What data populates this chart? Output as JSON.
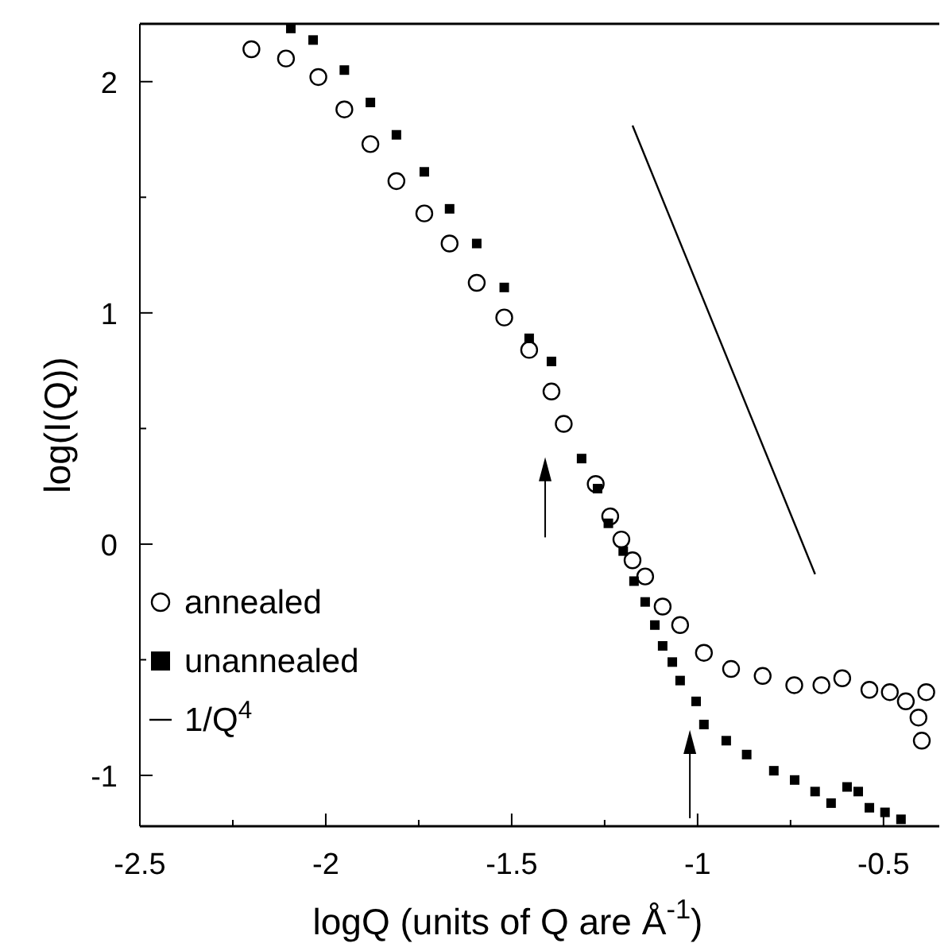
{
  "chart_data": {
    "type": "scatter",
    "xlabel": "logQ (units of Q are Å$^{-1}$)",
    "ylabel": "log(I(Q))",
    "xlim": [
      -2.5,
      -0.35
    ],
    "ylim": [
      -1.22,
      2.25
    ],
    "xticks": [
      -2.5,
      {
        "value": -2.25,
        "label": null
      },
      -2,
      {
        "value": -1.75,
        "label": null
      },
      -1.5,
      {
        "value": -1.25,
        "label": null
      },
      -1,
      {
        "value": -0.75,
        "label": null
      },
      -0.5
    ],
    "yticks": [
      -1,
      {
        "value": -0.5,
        "label": null
      },
      0,
      {
        "value": 0.5,
        "label": null
      },
      1,
      {
        "value": 1.5,
        "label": null
      },
      2
    ],
    "legend": "bottom left",
    "grid": false,
    "series": [
      {
        "name": "annealed",
        "marker": "circle",
        "color": "#000000",
        "x": [
          -2.2,
          -2.107,
          -2.02,
          -1.95,
          -1.88,
          -1.81,
          -1.735,
          -1.667,
          -1.594,
          -1.52,
          -1.453,
          -1.393,
          -1.36,
          -1.274,
          -1.235,
          -1.205,
          -1.175,
          -1.141,
          -1.094,
          -1.047,
          -0.983,
          -0.91,
          -0.825,
          -0.74,
          -0.667,
          -0.611,
          -0.538,
          -0.483,
          -0.44,
          -0.406,
          -0.397,
          -0.385
        ],
        "values": [
          2.14,
          2.1,
          2.02,
          1.88,
          1.73,
          1.57,
          1.43,
          1.3,
          1.13,
          0.98,
          0.84,
          0.66,
          0.52,
          0.26,
          0.12,
          0.02,
          -0.07,
          -0.14,
          -0.27,
          -0.35,
          -0.47,
          -0.54,
          -0.57,
          -0.61,
          -0.61,
          -0.58,
          -0.63,
          -0.64,
          -0.68,
          -0.75,
          -0.85,
          -0.64
        ]
      },
      {
        "name": "unannealed",
        "marker": "square",
        "color": "#000000",
        "x": [
          -2.094,
          -2.034,
          -1.95,
          -1.88,
          -1.81,
          -1.735,
          -1.667,
          -1.594,
          -1.52,
          -1.453,
          -1.393,
          -1.312,
          -1.269,
          -1.24,
          -1.2,
          -1.171,
          -1.141,
          -1.115,
          -1.094,
          -1.068,
          -1.047,
          -1.004,
          -0.983,
          -0.923,
          -0.868,
          -0.795,
          -0.739,
          -0.684,
          -0.641,
          -0.598,
          -0.568,
          -0.538,
          -0.496,
          -0.453
        ],
        "values": [
          2.23,
          2.18,
          2.05,
          1.91,
          1.77,
          1.61,
          1.45,
          1.3,
          1.11,
          0.89,
          0.79,
          0.37,
          0.24,
          0.09,
          -0.03,
          -0.16,
          -0.25,
          -0.35,
          -0.44,
          -0.51,
          -0.59,
          -0.68,
          -0.78,
          -0.85,
          -0.91,
          -0.98,
          -1.02,
          -1.07,
          -1.12,
          -1.05,
          -1.07,
          -1.14,
          -1.16,
          -1.19
        ]
      },
      {
        "name": "1/Q$^{4}$",
        "type": "line",
        "marker": "none",
        "line_style": "solid",
        "color": "#000000",
        "x": [
          -1.175,
          -0.684
        ],
        "values": [
          1.81,
          -0.13
        ]
      }
    ]
  }
}
